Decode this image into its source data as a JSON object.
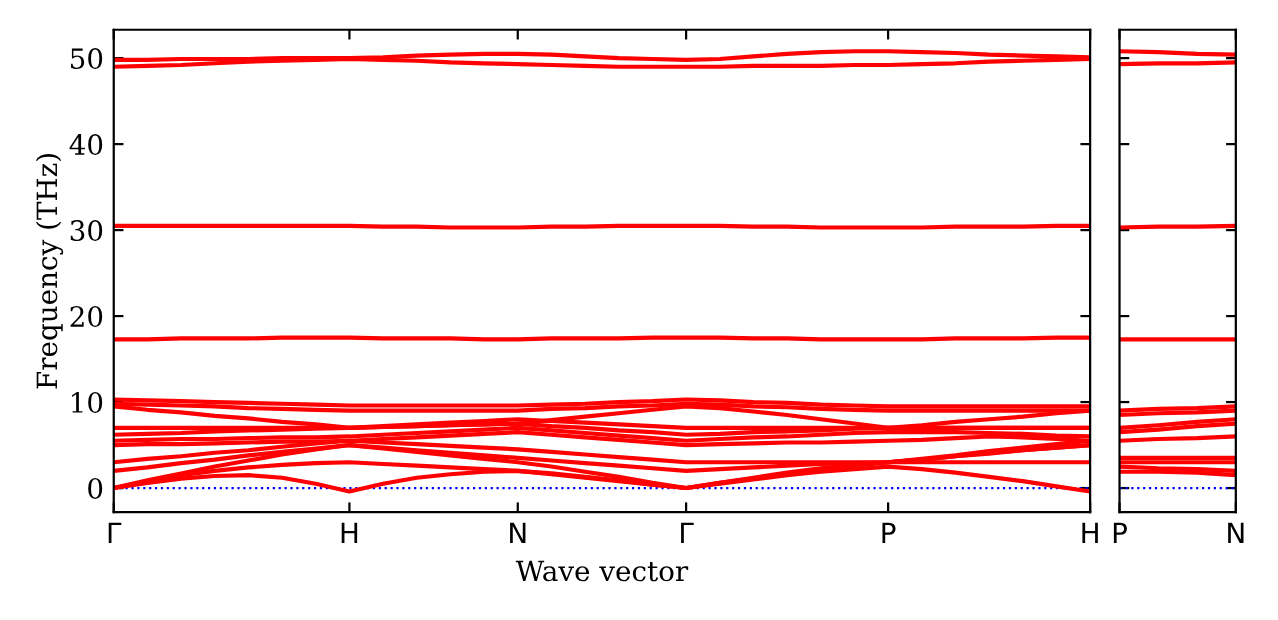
{
  "chart_data": [
    {
      "type": "line",
      "xlabel": "Wave vector",
      "ylabel": "Frequency (THz)",
      "categories": [
        "Γ",
        null,
        null,
        null,
        null,
        null,
        null,
        "H",
        null,
        null,
        null,
        null,
        "N",
        null,
        null,
        null,
        null,
        "Γ",
        null,
        null,
        null,
        null,
        null,
        "P",
        null,
        null,
        null,
        null,
        null,
        "H"
      ],
      "ylim": [
        -2.8,
        53.3
      ],
      "yticks": [
        0,
        10,
        20,
        30,
        40,
        50
      ],
      "ref_lines": [
        {
          "axis": "y",
          "value": 0,
          "color": "#0000ff",
          "line_style": "dotted"
        }
      ],
      "series": [
        {
          "color": "#ff0000",
          "values": [
            49.0,
            49.1,
            49.2,
            49.4,
            49.6,
            49.7,
            49.8,
            49.9,
            49.8,
            49.7,
            49.5,
            49.4,
            49.3,
            49.2,
            49.1,
            49.0,
            49.0,
            49.0,
            49.0,
            49.1,
            49.1,
            49.1,
            49.2,
            49.2,
            49.3,
            49.4,
            49.6,
            49.7,
            49.8,
            49.9
          ]
        },
        {
          "color": "#ff0000",
          "values": [
            49.8,
            49.8,
            49.9,
            49.9,
            49.9,
            50.0,
            50.0,
            50.0,
            50.1,
            50.3,
            50.4,
            50.5,
            50.5,
            50.4,
            50.2,
            50.0,
            49.9,
            49.8,
            49.9,
            50.2,
            50.5,
            50.7,
            50.8,
            50.8,
            50.7,
            50.6,
            50.4,
            50.3,
            50.2,
            50.1
          ]
        },
        {
          "color": "#ff0000",
          "values": [
            30.5,
            30.5,
            30.5,
            30.5,
            30.5,
            30.5,
            30.5,
            30.5,
            30.4,
            30.4,
            30.3,
            30.3,
            30.3,
            30.4,
            30.4,
            30.5,
            30.5,
            30.5,
            30.5,
            30.4,
            30.4,
            30.3,
            30.3,
            30.3,
            30.3,
            30.4,
            30.4,
            30.4,
            30.5,
            30.5
          ]
        },
        {
          "color": "#ff0000",
          "values": [
            17.3,
            17.3,
            17.4,
            17.4,
            17.4,
            17.5,
            17.5,
            17.5,
            17.4,
            17.4,
            17.4,
            17.3,
            17.3,
            17.4,
            17.4,
            17.4,
            17.5,
            17.5,
            17.5,
            17.4,
            17.4,
            17.3,
            17.3,
            17.3,
            17.3,
            17.4,
            17.4,
            17.4,
            17.5,
            17.5
          ]
        },
        {
          "color": "#ff0000",
          "values": [
            0,
            0.6,
            1.1,
            1.4,
            1.5,
            1.2,
            0.5,
            -0.4,
            0.5,
            1.2,
            1.6,
            1.9,
            2.0,
            1.7,
            1.3,
            0.9,
            0.4,
            0,
            0.5,
            1.0,
            1.5,
            1.9,
            2.2,
            2.5,
            2.2,
            1.8,
            1.3,
            0.8,
            0.2,
            -0.4
          ]
        },
        {
          "color": "#ff0000",
          "values": [
            0,
            0.8,
            1.5,
            2.0,
            2.4,
            2.7,
            2.9,
            3.0,
            2.8,
            2.6,
            2.4,
            2.2,
            2.0,
            1.6,
            1.2,
            0.8,
            0.4,
            0,
            0.6,
            1.2,
            1.8,
            2.3,
            2.7,
            3.0,
            3.0,
            3.0,
            3.0,
            3.0,
            3.0,
            3.0
          ]
        },
        {
          "color": "#ff0000",
          "values": [
            0,
            0.9,
            1.7,
            2.5,
            3.2,
            3.9,
            4.5,
            5.0,
            4.6,
            4.2,
            3.8,
            3.4,
            3.0,
            2.5,
            1.9,
            1.3,
            0.6,
            0,
            0.6,
            1.1,
            1.6,
            2.1,
            2.6,
            3.0,
            3.3,
            3.7,
            4.1,
            4.4,
            4.7,
            5.0
          ]
        },
        {
          "color": "#ff0000",
          "values": [
            2.0,
            2.4,
            2.9,
            3.3,
            3.8,
            4.2,
            4.6,
            5.0,
            4.7,
            4.4,
            4.1,
            3.8,
            3.5,
            3.2,
            2.9,
            2.6,
            2.3,
            2.0,
            2.2,
            2.4,
            2.6,
            2.8,
            2.9,
            3.0,
            3.3,
            3.7,
            4.0,
            4.4,
            4.7,
            5.0
          ]
        },
        {
          "color": "#ff0000",
          "values": [
            3.0,
            3.4,
            3.7,
            4.1,
            4.4,
            4.8,
            5.2,
            5.5,
            5.3,
            5.1,
            4.9,
            4.7,
            4.5,
            4.2,
            3.9,
            3.6,
            3.3,
            3.0,
            3.0,
            3.0,
            3.0,
            3.0,
            3.0,
            3.0,
            3.4,
            3.8,
            4.3,
            4.7,
            5.1,
            5.5
          ]
        },
        {
          "color": "#ff0000",
          "values": [
            5.0,
            5.1,
            5.1,
            5.2,
            5.3,
            5.4,
            5.4,
            5.5,
            5.7,
            5.9,
            6.1,
            6.3,
            6.5,
            6.2,
            5.9,
            5.6,
            5.3,
            5.0,
            5.1,
            5.2,
            5.3,
            5.3,
            5.4,
            5.5,
            5.6,
            5.8,
            6.0,
            5.9,
            5.7,
            5.5
          ]
        },
        {
          "color": "#ff0000",
          "values": [
            5.5,
            5.6,
            5.7,
            5.7,
            5.8,
            5.9,
            5.9,
            6.0,
            6.2,
            6.4,
            6.6,
            6.8,
            7.0,
            6.7,
            6.4,
            6.1,
            5.8,
            5.5,
            5.7,
            5.9,
            6.0,
            6.2,
            6.4,
            6.5,
            6.5,
            6.5,
            6.4,
            6.3,
            6.1,
            6.0
          ]
        },
        {
          "color": "#ff0000",
          "values": [
            6.2,
            6.3,
            6.4,
            6.6,
            6.7,
            6.8,
            6.9,
            7.0,
            7.1,
            7.2,
            7.3,
            7.4,
            7.5,
            7.2,
            7.0,
            6.7,
            6.5,
            6.2,
            6.3,
            6.5,
            6.6,
            6.7,
            6.9,
            7.0,
            7.0,
            7.0,
            7.0,
            7.0,
            7.0,
            7.0
          ]
        },
        {
          "color": "#ff0000",
          "values": [
            7.0,
            7.0,
            7.0,
            7.0,
            7.0,
            7.0,
            7.0,
            7.0,
            7.2,
            7.4,
            7.6,
            7.8,
            8.0,
            7.8,
            7.6,
            7.4,
            7.2,
            7.0,
            7.0,
            7.0,
            7.0,
            7.0,
            7.0,
            7.0,
            7.3,
            7.7,
            8.0,
            8.3,
            8.7,
            9.0
          ]
        },
        {
          "color": "#ff0000",
          "values": [
            9.5,
            9.1,
            8.8,
            8.4,
            8.1,
            7.7,
            7.4,
            7.0,
            7.1,
            7.2,
            7.3,
            7.4,
            7.5,
            7.9,
            8.3,
            8.7,
            9.1,
            9.5,
            9.3,
            8.9,
            8.5,
            8.0,
            7.5,
            7.0,
            7.0,
            7.0,
            7.0,
            7.0,
            7.0,
            7.0
          ]
        },
        {
          "color": "#ff0000",
          "values": [
            9.8,
            9.7,
            9.6,
            9.5,
            9.3,
            9.2,
            9.1,
            9.0,
            9.0,
            9.0,
            9.0,
            9.0,
            9.0,
            9.2,
            9.3,
            9.5,
            9.6,
            9.8,
            9.7,
            9.5,
            9.4,
            9.2,
            9.1,
            9.0,
            9.0,
            9.0,
            9.0,
            9.0,
            9.0,
            9.0
          ]
        },
        {
          "color": "#ff0000",
          "values": [
            10.3,
            10.2,
            10.1,
            10.0,
            9.9,
            9.8,
            9.7,
            9.6,
            9.6,
            9.6,
            9.6,
            9.6,
            9.6,
            9.7,
            9.8,
            10.0,
            10.1,
            10.3,
            10.2,
            10.0,
            9.9,
            9.7,
            9.6,
            9.5,
            9.5,
            9.5,
            9.5,
            9.5,
            9.5,
            9.5
          ]
        }
      ]
    },
    {
      "type": "line",
      "categories": [
        "P",
        null,
        null,
        "N"
      ],
      "ylim": [
        -2.8,
        53.3
      ],
      "yticks": [
        0,
        10,
        20,
        30,
        40,
        50
      ],
      "tick_labels": "x",
      "ref_lines": [
        {
          "axis": "y",
          "value": 0,
          "color": "#0000ff",
          "line_style": "dotted"
        }
      ],
      "series": [
        {
          "color": "#ff0000",
          "values": [
            50.8,
            50.7,
            50.5,
            50.4
          ]
        },
        {
          "color": "#ff0000",
          "values": [
            49.3,
            49.4,
            49.4,
            49.5
          ]
        },
        {
          "color": "#ff0000",
          "values": [
            30.3,
            30.4,
            30.4,
            30.5
          ]
        },
        {
          "color": "#ff0000",
          "values": [
            17.3,
            17.3,
            17.3,
            17.3
          ]
        },
        {
          "color": "#ff0000",
          "values": [
            9.0,
            9.2,
            9.3,
            9.5
          ]
        },
        {
          "color": "#ff0000",
          "values": [
            8.5,
            8.7,
            8.8,
            9.0
          ]
        },
        {
          "color": "#ff0000",
          "values": [
            7.0,
            7.3,
            7.7,
            8.0
          ]
        },
        {
          "color": "#ff0000",
          "values": [
            6.5,
            6.8,
            7.2,
            7.5
          ]
        },
        {
          "color": "#ff0000",
          "values": [
            5.5,
            5.7,
            5.8,
            6.0
          ]
        },
        {
          "color": "#ff0000",
          "values": [
            3.5,
            3.5,
            3.5,
            3.5
          ]
        },
        {
          "color": "#ff0000",
          "values": [
            3.0,
            3.0,
            3.0,
            3.0
          ]
        },
        {
          "color": "#ff0000",
          "values": [
            2.5,
            2.3,
            2.2,
            2.0
          ]
        },
        {
          "color": "#ff0000",
          "values": [
            1.9,
            1.9,
            1.8,
            1.5
          ]
        }
      ]
    }
  ]
}
